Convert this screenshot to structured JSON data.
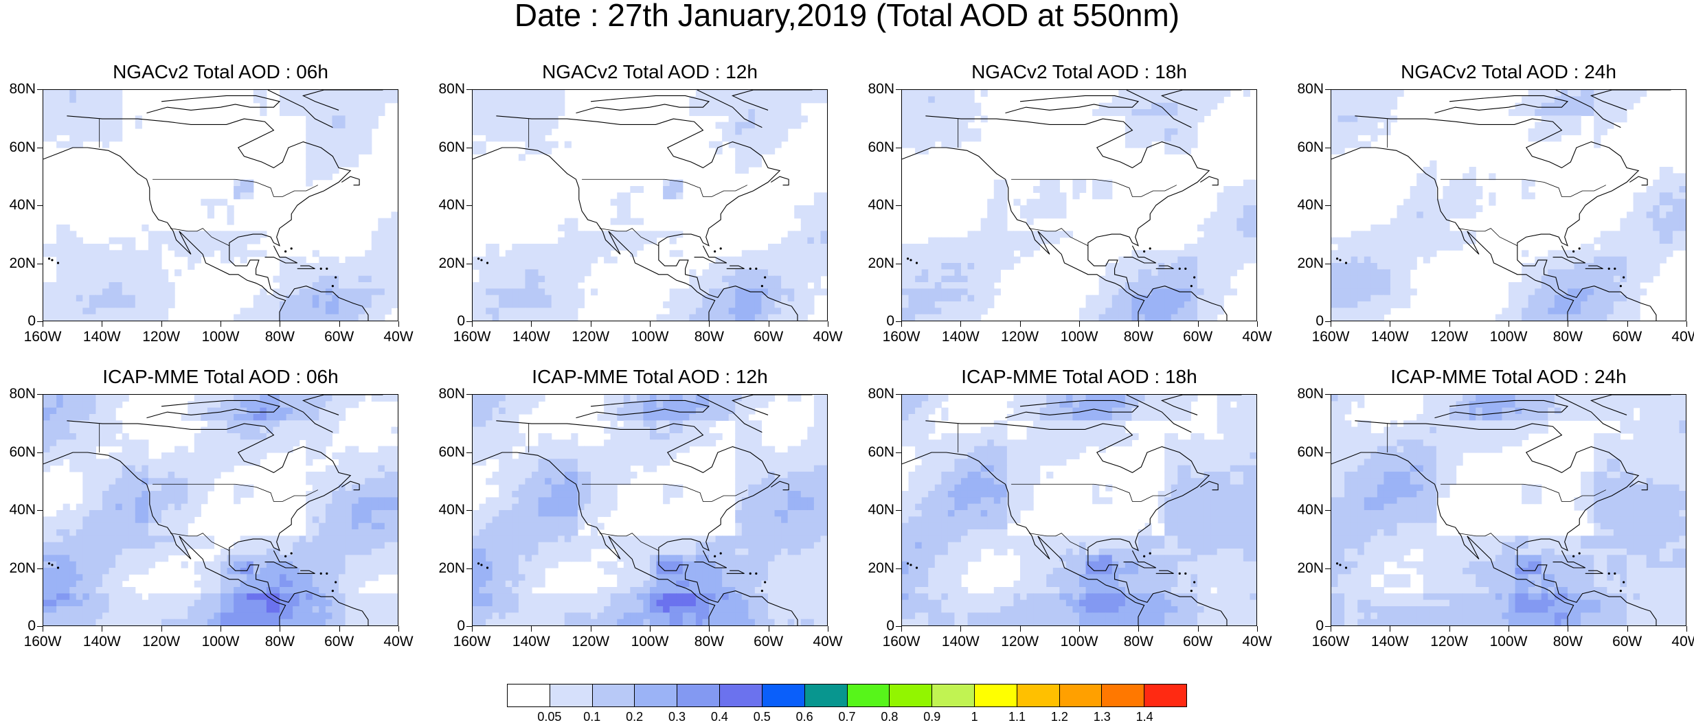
{
  "title": "Date : 27th January,2019 (Total AOD at 550nm)",
  "panels": [
    {
      "title": "NGACv2 Total AOD : 06h"
    },
    {
      "title": "NGACv2 Total AOD : 12h"
    },
    {
      "title": "NGACv2 Total AOD : 18h"
    },
    {
      "title": "NGACv2 Total AOD : 24h"
    },
    {
      "title": "ICAP-MME Total AOD : 06h"
    },
    {
      "title": "ICAP-MME Total AOD : 12h"
    },
    {
      "title": "ICAP-MME Total AOD : 18h"
    },
    {
      "title": "ICAP-MME Total AOD : 24h"
    }
  ],
  "map": {
    "lat_ticks": [
      "0",
      "20N",
      "40N",
      "60N",
      "80N"
    ],
    "lat_values": [
      0,
      20,
      40,
      60,
      80
    ],
    "lon_ticks": [
      "160W",
      "140W",
      "120W",
      "100W",
      "80W",
      "60W",
      "40W"
    ],
    "lon_values": [
      -160,
      -140,
      -120,
      -100,
      -80,
      -60,
      -40
    ],
    "lat_range": [
      0,
      80
    ],
    "lon_range": [
      -160,
      -40
    ]
  },
  "colorbar": {
    "labels": [
      "0.05",
      "0.1",
      "0.2",
      "0.3",
      "0.4",
      "0.5",
      "0.6",
      "0.7",
      "0.8",
      "0.9",
      "1",
      "1.1",
      "1.2",
      "1.3",
      "1.4"
    ],
    "colors": [
      "#ffffff",
      "#d6e0fb",
      "#b8c9f7",
      "#9bb3f6",
      "#8399f2",
      "#6b72ee",
      "#0a5ffa",
      "#08968f",
      "#57f51a",
      "#92f500",
      "#c1f352",
      "#ffff00",
      "#ffc000",
      "#ffa000",
      "#ff7800",
      "#ff2a12"
    ]
  }
}
